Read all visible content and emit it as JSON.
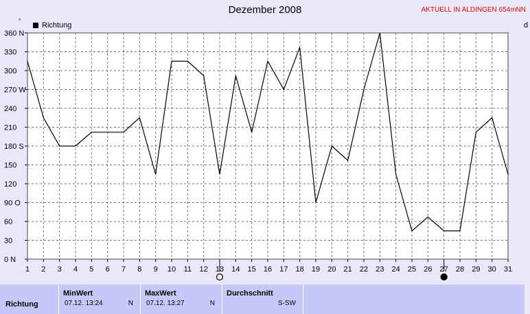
{
  "header": {
    "title": "Dezember 2008",
    "station": "AKTUELL IN ALDINGEN 654mNN",
    "small_mark": "°",
    "right_letter": "d"
  },
  "chart_data": {
    "type": "line",
    "title": "Dezember 2008",
    "legend": [
      "Richtung"
    ],
    "x": [
      1,
      2,
      3,
      4,
      5,
      6,
      7,
      8,
      9,
      10,
      11,
      12,
      13,
      14,
      15,
      16,
      17,
      18,
      19,
      20,
      21,
      22,
      23,
      24,
      25,
      26,
      27,
      28,
      29,
      30,
      31
    ],
    "series": [
      {
        "name": "Richtung",
        "values": [
          315,
          225,
          180,
          180,
          202,
          202,
          202,
          225,
          135,
          315,
          315,
          292,
          135,
          292,
          202,
          315,
          270,
          337,
          90,
          180,
          157,
          270,
          360,
          135,
          45,
          67,
          45,
          45,
          202,
          225,
          135
        ]
      }
    ],
    "ylim": [
      0,
      360
    ],
    "yticks": [
      0,
      30,
      60,
      90,
      120,
      150,
      180,
      210,
      240,
      270,
      300,
      330,
      360
    ],
    "ytick_labels": [
      "0  N",
      "30",
      "60",
      "90  O",
      "120",
      "150",
      "180 S",
      "210",
      "240",
      "270 W",
      "300",
      "330",
      "360 N"
    ],
    "xticks": [
      "1",
      "2",
      "3",
      "4",
      "5",
      "6",
      "7",
      "8",
      "9",
      "10",
      "11",
      "12",
      "13",
      "14",
      "15",
      "16",
      "17",
      "18",
      "19",
      "20",
      "21",
      "22",
      "23",
      "24",
      "25",
      "26",
      "27",
      "28",
      "29",
      "30",
      "31"
    ],
    "grid": true,
    "legend_position": "top-left",
    "moon_markers": [
      {
        "day": 13,
        "phase": "full",
        "icon": "full-moon-icon"
      },
      {
        "day": 27,
        "phase": "new",
        "icon": "new-moon-icon"
      }
    ],
    "colors": {
      "line": "#000000",
      "grid": "#707070",
      "background": "#ffffff"
    }
  },
  "stats": {
    "row_label": "Richtung",
    "min": {
      "header": "MinWert",
      "time": "07.12.  13:24",
      "value": "N"
    },
    "max": {
      "header": "MaxWert",
      "time": "07.12.  13:27",
      "value": "N"
    },
    "avg": {
      "header": "Durchschnitt",
      "value": "S-SW"
    }
  }
}
